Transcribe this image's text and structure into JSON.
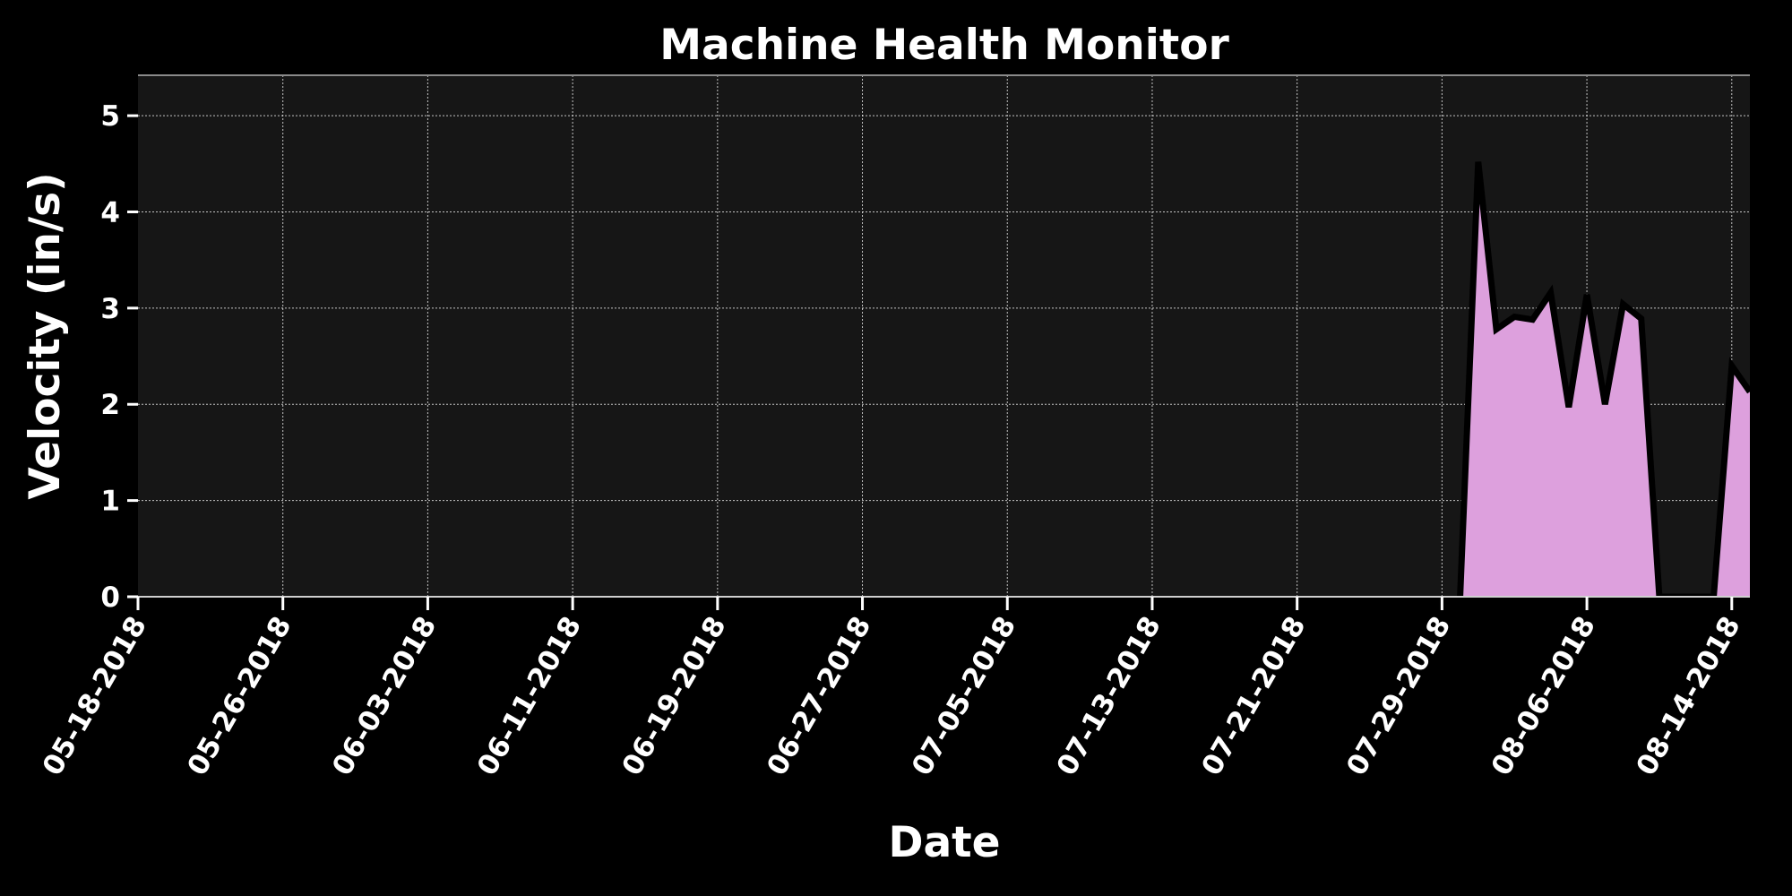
{
  "chart_data": {
    "type": "area",
    "title": "Machine Health Monitor",
    "xlabel": "Date",
    "ylabel": "Velocity (in/s)",
    "xlim": [
      "05-18-2018",
      "08-15-2018"
    ],
    "ylim": [
      0,
      5.42
    ],
    "yticks": [
      0,
      1,
      2,
      3,
      4,
      5
    ],
    "xtick_labels": [
      "05-18-2018",
      "05-26-2018",
      "06-03-2018",
      "06-11-2018",
      "06-19-2018",
      "06-27-2018",
      "07-05-2018",
      "07-13-2018",
      "07-21-2018",
      "07-29-2018",
      "08-06-2018",
      "08-14-2018"
    ],
    "grid": true,
    "colors": {
      "figure_background": "#000000",
      "plot_background": "#161616",
      "fill": "#dda0dd",
      "line": "#000000",
      "text": "#ffffff",
      "grid": "#ffffff"
    },
    "series": [
      {
        "x": [
          "07-30-2018",
          "07-31-2018",
          "08-01-2018",
          "08-02-2018",
          "08-03-2018",
          "08-04-2018",
          "08-05-2018",
          "08-06-2018",
          "08-07-2018",
          "08-08-2018",
          "08-09-2018",
          "08-10-2018",
          "08-11-2018",
          "08-12-2018",
          "08-13-2018",
          "08-14-2018",
          "08-15-2018"
        ],
        "values": [
          0,
          4.52,
          2.78,
          2.91,
          2.88,
          3.16,
          1.97,
          3.14,
          2.0,
          3.04,
          2.89,
          0,
          0,
          0,
          0,
          2.4,
          2.13
        ]
      }
    ]
  }
}
